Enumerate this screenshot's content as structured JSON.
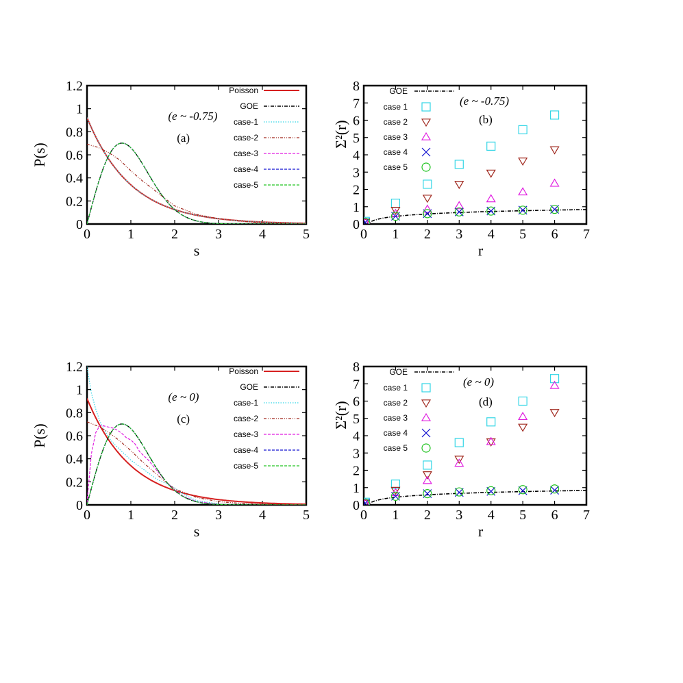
{
  "colors": {
    "poisson": "#d62020",
    "goe": "#000000",
    "case1": "#33d6e6",
    "case2": "#a0281e",
    "case3": "#e01ee0",
    "case4": "#1010d0",
    "case5": "#22c322"
  },
  "chart_data": [
    {
      "id": "a",
      "type": "line",
      "annotation": "(a)",
      "condition": "(e ~ -0.75)",
      "xlabel": "s",
      "ylabel": "P(s)",
      "xlim": [
        0,
        5
      ],
      "ylim": [
        0,
        1.3
      ],
      "xticks": [
        "0",
        "1",
        "2",
        "3",
        "4",
        "5"
      ],
      "yticks": [
        "0",
        "0.2",
        "0.4",
        "0.6",
        "0.8",
        "1",
        "1.2"
      ],
      "legend_position": "top-right",
      "series": [
        {
          "name": "Poisson",
          "color": "poisson",
          "dash": "solid",
          "width": 2,
          "curve": "poisson"
        },
        {
          "name": "GOE",
          "color": "goe",
          "dash": "dashdot",
          "width": 1.4,
          "curve": "goe"
        },
        {
          "name": "case-1",
          "color": "case1",
          "dash": "dotted",
          "width": 1.2,
          "curve": "poisson"
        },
        {
          "name": "case-2",
          "color": "case2",
          "dash": "dashdotdot",
          "width": 1.2,
          "x": [
            0,
            0.25,
            0.5,
            0.75,
            1,
            1.25,
            1.5,
            1.75,
            2,
            2.5,
            3,
            3.5,
            4,
            4.5,
            5
          ],
          "y": [
            0.75,
            0.72,
            0.67,
            0.6,
            0.5,
            0.41,
            0.33,
            0.25,
            0.17,
            0.09,
            0.05,
            0.025,
            0.012,
            0.005,
            0.002
          ]
        },
        {
          "name": "case-3",
          "color": "case3",
          "dash": "dashed",
          "width": 1.2,
          "curve": "goe"
        },
        {
          "name": "case-4",
          "color": "case4",
          "dash": "dashed",
          "width": 1.2,
          "curve": "goe"
        },
        {
          "name": "case-5",
          "color": "case5",
          "dash": "dashed",
          "width": 1.2,
          "curve": "goe"
        }
      ]
    },
    {
      "id": "b",
      "type": "scatter",
      "annotation": "(b)",
      "condition": "(e ~ -0.75)",
      "xlabel": "r",
      "ylabel": "Σ²(r)",
      "xlim": [
        0,
        7
      ],
      "ylim": [
        0,
        8
      ],
      "xticks": [
        "0",
        "1",
        "2",
        "3",
        "4",
        "5",
        "6",
        "7"
      ],
      "yticks": [
        "0",
        "1",
        "2",
        "3",
        "4",
        "5",
        "6",
        "7",
        "8"
      ],
      "legend_position": "top-left",
      "line": {
        "name": "GOE",
        "color": "goe",
        "curve": "goe_sigma"
      },
      "x": [
        0.05,
        1,
        2,
        3,
        4,
        5,
        6
      ],
      "series": [
        {
          "name": "case 1",
          "marker": "square",
          "color": "case1",
          "values": [
            0.15,
            1.2,
            2.3,
            3.45,
            4.5,
            5.45,
            6.3
          ]
        },
        {
          "name": "case 2",
          "marker": "tri-down",
          "color": "case2",
          "values": [
            0.1,
            0.8,
            1.5,
            2.3,
            2.95,
            3.65,
            4.3
          ]
        },
        {
          "name": "case 3",
          "marker": "tri-up",
          "color": "case3",
          "values": [
            0.1,
            0.6,
            0.85,
            1.05,
            1.45,
            1.85,
            2.35
          ]
        },
        {
          "name": "case 4",
          "marker": "cross",
          "color": "case4",
          "values": [
            0.1,
            0.45,
            0.6,
            0.7,
            0.75,
            0.8,
            0.85
          ]
        },
        {
          "name": "case 5",
          "marker": "circle",
          "color": "case5",
          "values": [
            0.1,
            0.45,
            0.6,
            0.7,
            0.75,
            0.8,
            0.85
          ]
        }
      ]
    },
    {
      "id": "c",
      "type": "line",
      "annotation": "(c)",
      "condition": "(e ~ 0)",
      "xlabel": "s",
      "ylabel": "P(s)",
      "xlim": [
        0,
        5
      ],
      "ylim": [
        0,
        1.3
      ],
      "xticks": [
        "0",
        "1",
        "2",
        "3",
        "4",
        "5"
      ],
      "yticks": [
        "0",
        "0.2",
        "0.4",
        "0.6",
        "0.8",
        "1",
        "1.2"
      ],
      "legend_position": "top-right",
      "series": [
        {
          "name": "Poisson",
          "color": "poisson",
          "dash": "solid",
          "width": 2,
          "curve": "poisson"
        },
        {
          "name": "GOE",
          "color": "goe",
          "dash": "dashdot",
          "width": 1.4,
          "curve": "goe"
        },
        {
          "name": "case-1",
          "color": "case1",
          "dash": "dotted",
          "width": 1.2,
          "x": [
            0,
            0.1,
            0.2,
            0.3,
            0.4,
            0.5,
            0.6,
            0.8,
            1,
            1.2,
            1.4,
            1.6,
            1.8,
            2,
            2.2,
            2.5,
            3
          ],
          "y": [
            1.3,
            1.05,
            0.9,
            0.78,
            0.7,
            0.63,
            0.58,
            0.5,
            0.42,
            0.36,
            0.3,
            0.24,
            0.2,
            0.16,
            0.1,
            0.04,
            0.01
          ]
        },
        {
          "name": "case-2",
          "color": "case2",
          "dash": "dashdotdot",
          "width": 1.2,
          "x": [
            0,
            0.25,
            0.5,
            0.75,
            1,
            1.25,
            1.5,
            1.75,
            2,
            2.5,
            3,
            3.5,
            4,
            4.5,
            5
          ],
          "y": [
            0.78,
            0.74,
            0.68,
            0.6,
            0.51,
            0.41,
            0.32,
            0.23,
            0.15,
            0.07,
            0.03,
            0.015,
            0.006,
            0.003,
            0.001
          ]
        },
        {
          "name": "case-3",
          "color": "case3",
          "dash": "dashed",
          "width": 1.2,
          "x": [
            0,
            0.05,
            0.1,
            0.2,
            0.3,
            0.4,
            0.5,
            0.6,
            0.7,
            0.8,
            0.9,
            1,
            1.1,
            1.2,
            1.4,
            1.6,
            1.8,
            2,
            2.2,
            2.5,
            3
          ],
          "y": [
            0.02,
            0.25,
            0.48,
            0.68,
            0.75,
            0.74,
            0.73,
            0.72,
            0.7,
            0.67,
            0.63,
            0.61,
            0.57,
            0.5,
            0.42,
            0.32,
            0.22,
            0.14,
            0.08,
            0.03,
            0.005
          ]
        },
        {
          "name": "case-4",
          "color": "case4",
          "dash": "dashed",
          "width": 1.2,
          "curve": "goe"
        },
        {
          "name": "case-5",
          "color": "case5",
          "dash": "dashed",
          "width": 1.2,
          "curve": "goe"
        }
      ]
    },
    {
      "id": "d",
      "type": "scatter",
      "annotation": "(d)",
      "condition": "(e ~ 0)",
      "xlabel": "r",
      "ylabel": "Σ²(r)",
      "xlim": [
        0,
        7
      ],
      "ylim": [
        0,
        8
      ],
      "xticks": [
        "0",
        "1",
        "2",
        "3",
        "4",
        "5",
        "6",
        "7"
      ],
      "yticks": [
        "0",
        "1",
        "2",
        "3",
        "4",
        "5",
        "6",
        "7",
        "8"
      ],
      "legend_position": "top-left",
      "line": {
        "name": "GOE",
        "color": "goe",
        "curve": "goe_sigma"
      },
      "x": [
        0.05,
        1,
        2,
        3,
        4,
        5,
        6
      ],
      "series": [
        {
          "name": "case 1",
          "marker": "square",
          "color": "case1",
          "values": [
            0.15,
            1.2,
            2.3,
            3.6,
            4.8,
            6.0,
            7.3
          ]
        },
        {
          "name": "case 2",
          "marker": "tri-down",
          "color": "case2",
          "values": [
            0.1,
            0.85,
            1.75,
            2.65,
            3.65,
            4.5,
            5.35
          ]
        },
        {
          "name": "case 3",
          "marker": "tri-up",
          "color": "case3",
          "values": [
            0.1,
            0.7,
            1.4,
            2.4,
            3.65,
            5.1,
            6.9
          ]
        },
        {
          "name": "case 4",
          "marker": "cross",
          "color": "case4",
          "values": [
            0.1,
            0.5,
            0.65,
            0.72,
            0.78,
            0.82,
            0.85
          ]
        },
        {
          "name": "case 5",
          "marker": "circle",
          "color": "case5",
          "values": [
            0.1,
            0.5,
            0.65,
            0.75,
            0.82,
            0.88,
            0.92
          ]
        }
      ]
    }
  ]
}
